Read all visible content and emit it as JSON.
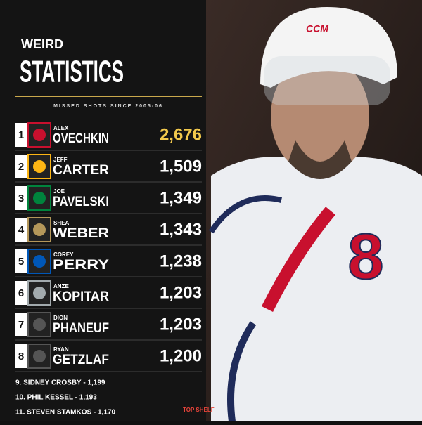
{
  "header": {
    "kicker": "WEIRD",
    "title": "STATISTICS",
    "subtitle": "MISSED SHOTS SINCE 2005-06"
  },
  "table": {
    "rows": [
      {
        "rank": "1",
        "first": "ALEX",
        "last": "OVECHKIN",
        "shots": "2,676"
      },
      {
        "rank": "2",
        "first": "JEFF",
        "last": "CARTER",
        "shots": "1,509"
      },
      {
        "rank": "3",
        "first": "JOE",
        "last": "PAVELSKI",
        "shots": "1,349"
      },
      {
        "rank": "4",
        "first": "SHEA",
        "last": "WEBER",
        "shots": "1,343"
      },
      {
        "rank": "5",
        "first": "COREY",
        "last": "PERRY",
        "shots": "1,238"
      },
      {
        "rank": "6",
        "first": "ANZE",
        "last": "KOPITAR",
        "shots": "1,203"
      },
      {
        "rank": "7",
        "first": "DION",
        "last": "PHANEUF",
        "shots": "1,203"
      },
      {
        "rank": "8",
        "first": "RYAN",
        "last": "GETZLAF",
        "shots": "1,200"
      }
    ]
  },
  "extras": [
    "9. SIDNEY CROSBY - 1,199",
    "10. PHIL KESSEL - 1,193",
    "11. STEVEN STAMKOS - 1,170"
  ],
  "brand": "TOP SHELF",
  "jersey_number": "8"
}
